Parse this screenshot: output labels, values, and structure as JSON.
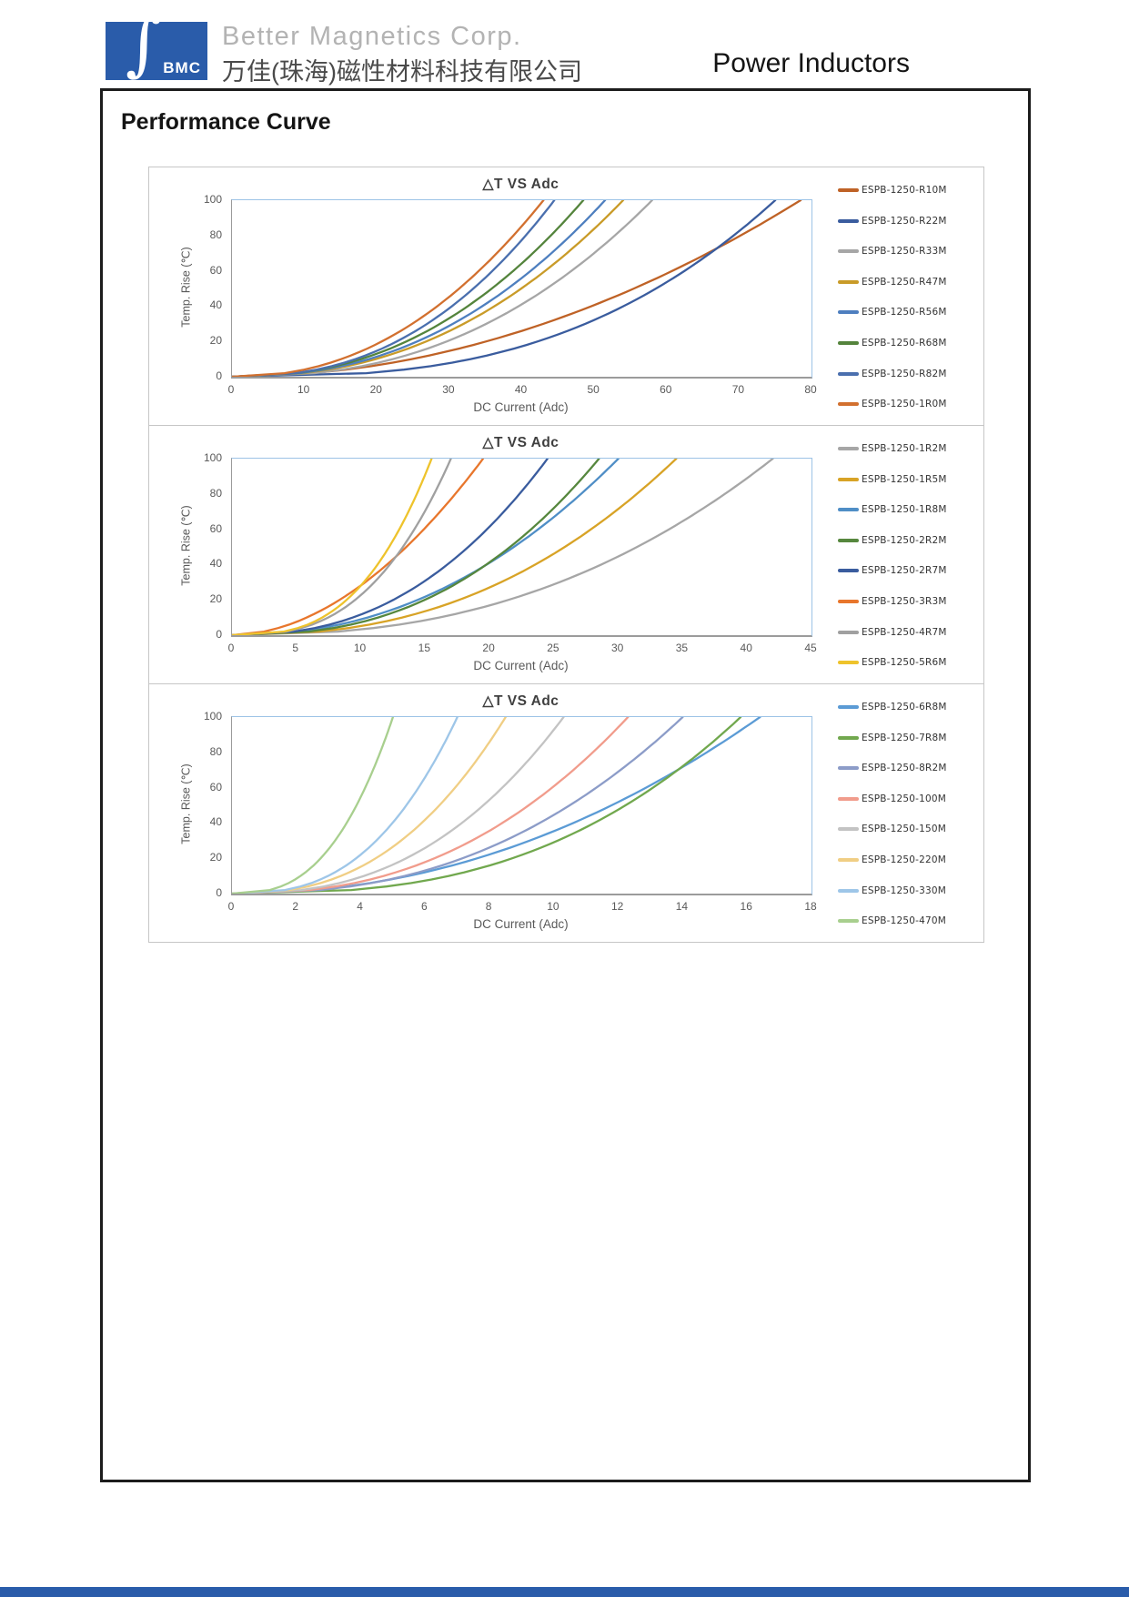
{
  "header": {
    "logo_abbr": "BMC",
    "company_en": "Better Magnetics Corp.",
    "company_cn": "万佳(珠海)磁性材料科技有限公司",
    "product_category": "Power Inductors",
    "brand_blue": "#2a5caa"
  },
  "section_title": "Performance Curve",
  "chart_data": [
    {
      "type": "line",
      "title": "△T VS Adc",
      "xlabel": "DC Current (Adc)",
      "ylabel": "Temp. Rise (℃)",
      "xlim": [
        0,
        80
      ],
      "ylim": [
        0,
        100
      ],
      "xticks": [
        0,
        10,
        20,
        30,
        40,
        50,
        60,
        70,
        80
      ],
      "yticks": [
        0,
        20,
        40,
        60,
        80,
        100
      ],
      "grid": false,
      "legend_position": "right",
      "series": [
        {
          "name": "ESPB-1250-R10M",
          "color": "#bf6226",
          "x100": 78.5,
          "exp": 2.0,
          "points": [
            [
              0,
              0
            ],
            [
              35.1,
              20
            ],
            [
              49.6,
              40
            ],
            [
              60.8,
              60
            ],
            [
              70.2,
              80
            ],
            [
              78.5,
              100
            ]
          ]
        },
        {
          "name": "ESPB-1250-R22M",
          "color": "#3a5c9e",
          "x100": 75,
          "exp": 2.8,
          "points": [
            [
              0,
              0
            ],
            [
              42.2,
              20
            ],
            [
              54.1,
              40
            ],
            [
              62.5,
              60
            ],
            [
              69.3,
              80
            ],
            [
              75,
              100
            ]
          ]
        },
        {
          "name": "ESPB-1250-R33M",
          "color": "#a6a6a6",
          "x100": 58,
          "exp": 2.4,
          "points": [
            [
              0,
              0
            ],
            [
              29.7,
              20
            ],
            [
              39.6,
              40
            ],
            [
              46.9,
              60
            ],
            [
              52.9,
              80
            ],
            [
              58,
              100
            ]
          ]
        },
        {
          "name": "ESPB-1250-R47M",
          "color": "#c99b28",
          "x100": 54,
          "exp": 2.3,
          "points": [
            [
              0,
              0
            ],
            [
              26.8,
              20
            ],
            [
              36.3,
              40
            ],
            [
              43.2,
              60
            ],
            [
              49,
              80
            ],
            [
              54,
              100
            ]
          ]
        },
        {
          "name": "ESPB-1250-R56M",
          "color": "#4e7fbf",
          "x100": 51.5,
          "exp": 2.3,
          "points": [
            [
              0,
              0
            ],
            [
              25.6,
              20
            ],
            [
              34.6,
              40
            ],
            [
              41.2,
              60
            ],
            [
              46.7,
              80
            ],
            [
              51.5,
              100
            ]
          ]
        },
        {
          "name": "ESPB-1250-R68M",
          "color": "#54843c",
          "x100": 48.5,
          "exp": 2.3,
          "points": [
            [
              0,
              0
            ],
            [
              24.1,
              20
            ],
            [
              32.6,
              40
            ],
            [
              38.8,
              60
            ],
            [
              44,
              80
            ],
            [
              48.5,
              100
            ]
          ]
        },
        {
          "name": "ESPB-1250-R82M",
          "color": "#4a6fae",
          "x100": 44.5,
          "exp": 2.4,
          "points": [
            [
              0,
              0
            ],
            [
              22.8,
              20
            ],
            [
              30.4,
              40
            ],
            [
              36,
              60
            ],
            [
              40.5,
              80
            ],
            [
              44.5,
              100
            ]
          ]
        },
        {
          "name": "ESPB-1250-1R0M",
          "color": "#d2702f",
          "x100": 43,
          "exp": 2.2,
          "points": [
            [
              0,
              0
            ],
            [
              20.7,
              20
            ],
            [
              28.3,
              40
            ],
            [
              34.1,
              60
            ],
            [
              38.9,
              80
            ],
            [
              43,
              100
            ]
          ]
        }
      ]
    },
    {
      "type": "line",
      "title": "△T VS Adc",
      "xlabel": "DC Current (Adc)",
      "ylabel": "Temp. Rise (℃)",
      "xlim": [
        0,
        45
      ],
      "ylim": [
        0,
        100
      ],
      "xticks": [
        0,
        5,
        10,
        15,
        20,
        25,
        30,
        35,
        40,
        45
      ],
      "yticks": [
        0,
        20,
        40,
        60,
        80,
        100
      ],
      "grid": false,
      "legend_position": "right",
      "series": [
        {
          "name": "ESPB-1250-1R2M",
          "color": "#a6a6a6",
          "x100": 42,
          "exp": 2.4,
          "points": [
            [
              0,
              0
            ],
            [
              21.5,
              20
            ],
            [
              28.7,
              40
            ],
            [
              33.9,
              60
            ],
            [
              38.3,
              80
            ],
            [
              42,
              100
            ]
          ]
        },
        {
          "name": "ESPB-1250-1R5M",
          "color": "#d8a326",
          "x100": 34.5,
          "exp": 2.4,
          "points": [
            [
              0,
              0
            ],
            [
              17.6,
              20
            ],
            [
              23.6,
              40
            ],
            [
              27.9,
              60
            ],
            [
              31.4,
              80
            ],
            [
              34.5,
              100
            ]
          ]
        },
        {
          "name": "ESPB-1250-1R8M",
          "color": "#4f8ec6",
          "x100": 30,
          "exp": 2.2,
          "points": [
            [
              0,
              0
            ],
            [
              14.4,
              20
            ],
            [
              19.8,
              40
            ],
            [
              23.8,
              60
            ],
            [
              27.1,
              80
            ],
            [
              30,
              100
            ]
          ]
        },
        {
          "name": "ESPB-1250-2R2M",
          "color": "#56873e",
          "x100": 28.5,
          "exp": 2.5,
          "points": [
            [
              0,
              0
            ],
            [
              15,
              20
            ],
            [
              19.8,
              40
            ],
            [
              23.2,
              60
            ],
            [
              26.1,
              80
            ],
            [
              28.5,
              100
            ]
          ]
        },
        {
          "name": "ESPB-1250-2R7M",
          "color": "#3a5c9e",
          "x100": 24.5,
          "exp": 2.4,
          "points": [
            [
              0,
              0
            ],
            [
              12.5,
              20
            ],
            [
              16.7,
              40
            ],
            [
              19.8,
              60
            ],
            [
              22.3,
              80
            ],
            [
              24.5,
              100
            ]
          ]
        },
        {
          "name": "ESPB-1250-3R3M",
          "color": "#e8762c",
          "x100": 19.5,
          "exp": 1.9,
          "points": [
            [
              0,
              0
            ],
            [
              8.4,
              20
            ],
            [
              12,
              40
            ],
            [
              14.9,
              60
            ],
            [
              17.3,
              80
            ],
            [
              19.5,
              100
            ]
          ]
        },
        {
          "name": "ESPB-1250-4R7M",
          "color": "#a0a0a0",
          "x100": 17,
          "exp": 2.8,
          "points": [
            [
              0,
              0
            ],
            [
              9.6,
              20
            ],
            [
              12.3,
              40
            ],
            [
              14.2,
              60
            ],
            [
              15.7,
              80
            ],
            [
              17,
              100
            ]
          ]
        },
        {
          "name": "ESPB-1250-5R6M",
          "color": "#eec32c",
          "x100": 15.5,
          "exp": 2.9,
          "points": [
            [
              0,
              0
            ],
            [
              8.9,
              20
            ],
            [
              11.3,
              40
            ],
            [
              13,
              60
            ],
            [
              14.4,
              80
            ],
            [
              15.5,
              100
            ]
          ]
        }
      ]
    },
    {
      "type": "line",
      "title": "△T VS Adc",
      "xlabel": "DC Current (Adc)",
      "ylabel": "Temp. Rise (℃)",
      "xlim": [
        0,
        18
      ],
      "ylim": [
        0,
        100
      ],
      "xticks": [
        0,
        2,
        4,
        6,
        8,
        10,
        12,
        14,
        16,
        18
      ],
      "yticks": [
        0,
        20,
        40,
        60,
        80,
        100
      ],
      "grid": false,
      "legend_position": "right",
      "series": [
        {
          "name": "ESPB-1250-6R8M",
          "color": "#5b9bd5",
          "x100": 16.4,
          "exp": 2.1,
          "points": [
            [
              0,
              0
            ],
            [
              7.6,
              20
            ],
            [
              10.6,
              40
            ],
            [
              12.9,
              60
            ],
            [
              14.7,
              80
            ],
            [
              16.4,
              100
            ]
          ]
        },
        {
          "name": "ESPB-1250-7R8M",
          "color": "#71a84e",
          "x100": 15.8,
          "exp": 2.7,
          "points": [
            [
              0,
              0
            ],
            [
              8.7,
              20
            ],
            [
              11.3,
              40
            ],
            [
              13.1,
              60
            ],
            [
              14.5,
              80
            ],
            [
              15.8,
              100
            ]
          ]
        },
        {
          "name": "ESPB-1250-8R2M",
          "color": "#8c9cc8",
          "x100": 14,
          "exp": 2.4,
          "points": [
            [
              0,
              0
            ],
            [
              7.2,
              20
            ],
            [
              9.6,
              40
            ],
            [
              11.3,
              60
            ],
            [
              12.8,
              80
            ],
            [
              14,
              100
            ]
          ]
        },
        {
          "name": "ESPB-1250-100M",
          "color": "#f19c8c",
          "x100": 12.3,
          "exp": 2.4,
          "points": [
            [
              0,
              0
            ],
            [
              6.3,
              20
            ],
            [
              8.4,
              40
            ],
            [
              9.9,
              60
            ],
            [
              11.2,
              80
            ],
            [
              12.3,
              100
            ]
          ]
        },
        {
          "name": "ESPB-1250-150M",
          "color": "#c3c3c3",
          "x100": 10.3,
          "exp": 2.5,
          "points": [
            [
              0,
              0
            ],
            [
              5.4,
              20
            ],
            [
              7.1,
              40
            ],
            [
              8.4,
              60
            ],
            [
              9.4,
              80
            ],
            [
              10.3,
              100
            ]
          ]
        },
        {
          "name": "ESPB-1250-220M",
          "color": "#f0ce84",
          "x100": 8.5,
          "exp": 2.5,
          "points": [
            [
              0,
              0
            ],
            [
              4.5,
              20
            ],
            [
              5.9,
              40
            ],
            [
              6.9,
              60
            ],
            [
              7.8,
              80
            ],
            [
              8.5,
              100
            ]
          ]
        },
        {
          "name": "ESPB-1250-330M",
          "color": "#9ec6e8",
          "x100": 7,
          "exp": 2.7,
          "points": [
            [
              0,
              0
            ],
            [
              3.9,
              20
            ],
            [
              5,
              40
            ],
            [
              5.8,
              60
            ],
            [
              6.4,
              80
            ],
            [
              7,
              100
            ]
          ]
        },
        {
          "name": "ESPB-1250-470M",
          "color": "#a8cf8e",
          "x100": 5,
          "exp": 2.7,
          "points": [
            [
              0,
              0
            ],
            [
              2.8,
              20
            ],
            [
              3.6,
              40
            ],
            [
              4.1,
              60
            ],
            [
              4.6,
              80
            ],
            [
              5,
              100
            ]
          ]
        }
      ]
    }
  ]
}
